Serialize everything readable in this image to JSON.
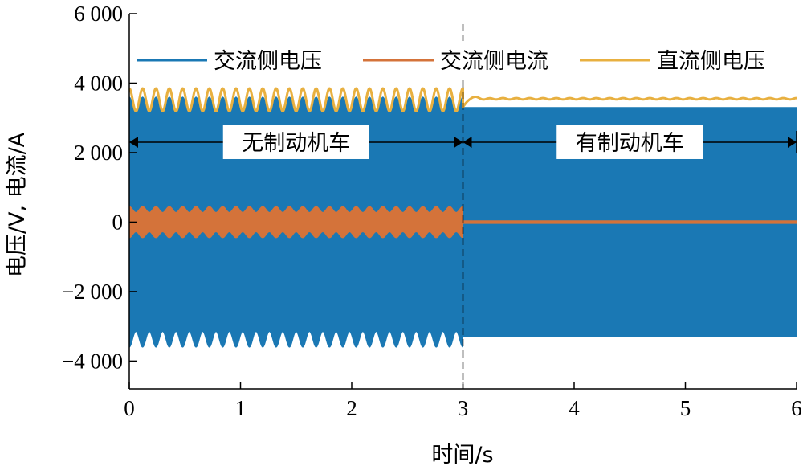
{
  "chart_data": {
    "type": "line",
    "xlabel": "时间/s",
    "ylabel": "电压/V, 电流/A",
    "xlim": [
      0,
      6
    ],
    "ylim": [
      -4800,
      6000
    ],
    "x_ticks": [
      0,
      1,
      2,
      3,
      4,
      5,
      6
    ],
    "x_tick_labels": [
      "0",
      "1",
      "2",
      "3",
      "4",
      "5",
      "6"
    ],
    "y_ticks": [
      -4000,
      -2000,
      0,
      2000,
      4000,
      6000
    ],
    "y_tick_labels": [
      "−4 000",
      "−2 000",
      "0",
      "2 000",
      "4 000",
      "6 000"
    ],
    "grid": false,
    "legend_position": "top",
    "divider_x": 3,
    "series": [
      {
        "name": "交流侧电压",
        "color": "#1a78b4",
        "style": "ac-band",
        "segments": [
          {
            "x_range": [
              0,
              3
            ],
            "amplitude_max": 3600,
            "amplitude_min": 3150,
            "ripple_period": 0.12
          },
          {
            "x_range": [
              3,
              6
            ],
            "amplitude": 3300
          }
        ]
      },
      {
        "name": "交流侧电流",
        "color": "#d4733a",
        "style": "ac-band",
        "segments": [
          {
            "x_range": [
              0,
              3
            ],
            "amplitude_max": 450,
            "amplitude_min": 280,
            "ripple_period": 0.12
          },
          {
            "x_range": [
              3,
              6
            ],
            "amplitude": 40
          }
        ]
      },
      {
        "name": "直流侧电压",
        "color": "#e8b040",
        "style": "line",
        "segments": [
          {
            "x_range": [
              0,
              3
            ],
            "mean": 3520,
            "ripple": 330,
            "ripple_period": 0.12
          },
          {
            "x_range": [
              3,
              6
            ],
            "mean": 3550,
            "ripple": 20
          }
        ]
      }
    ],
    "annotations": [
      {
        "text": "无制动机车",
        "x_range": [
          0,
          3
        ],
        "y": 2300
      },
      {
        "text": "有制动机车",
        "x_range": [
          3,
          6
        ],
        "y": 2300
      }
    ]
  }
}
